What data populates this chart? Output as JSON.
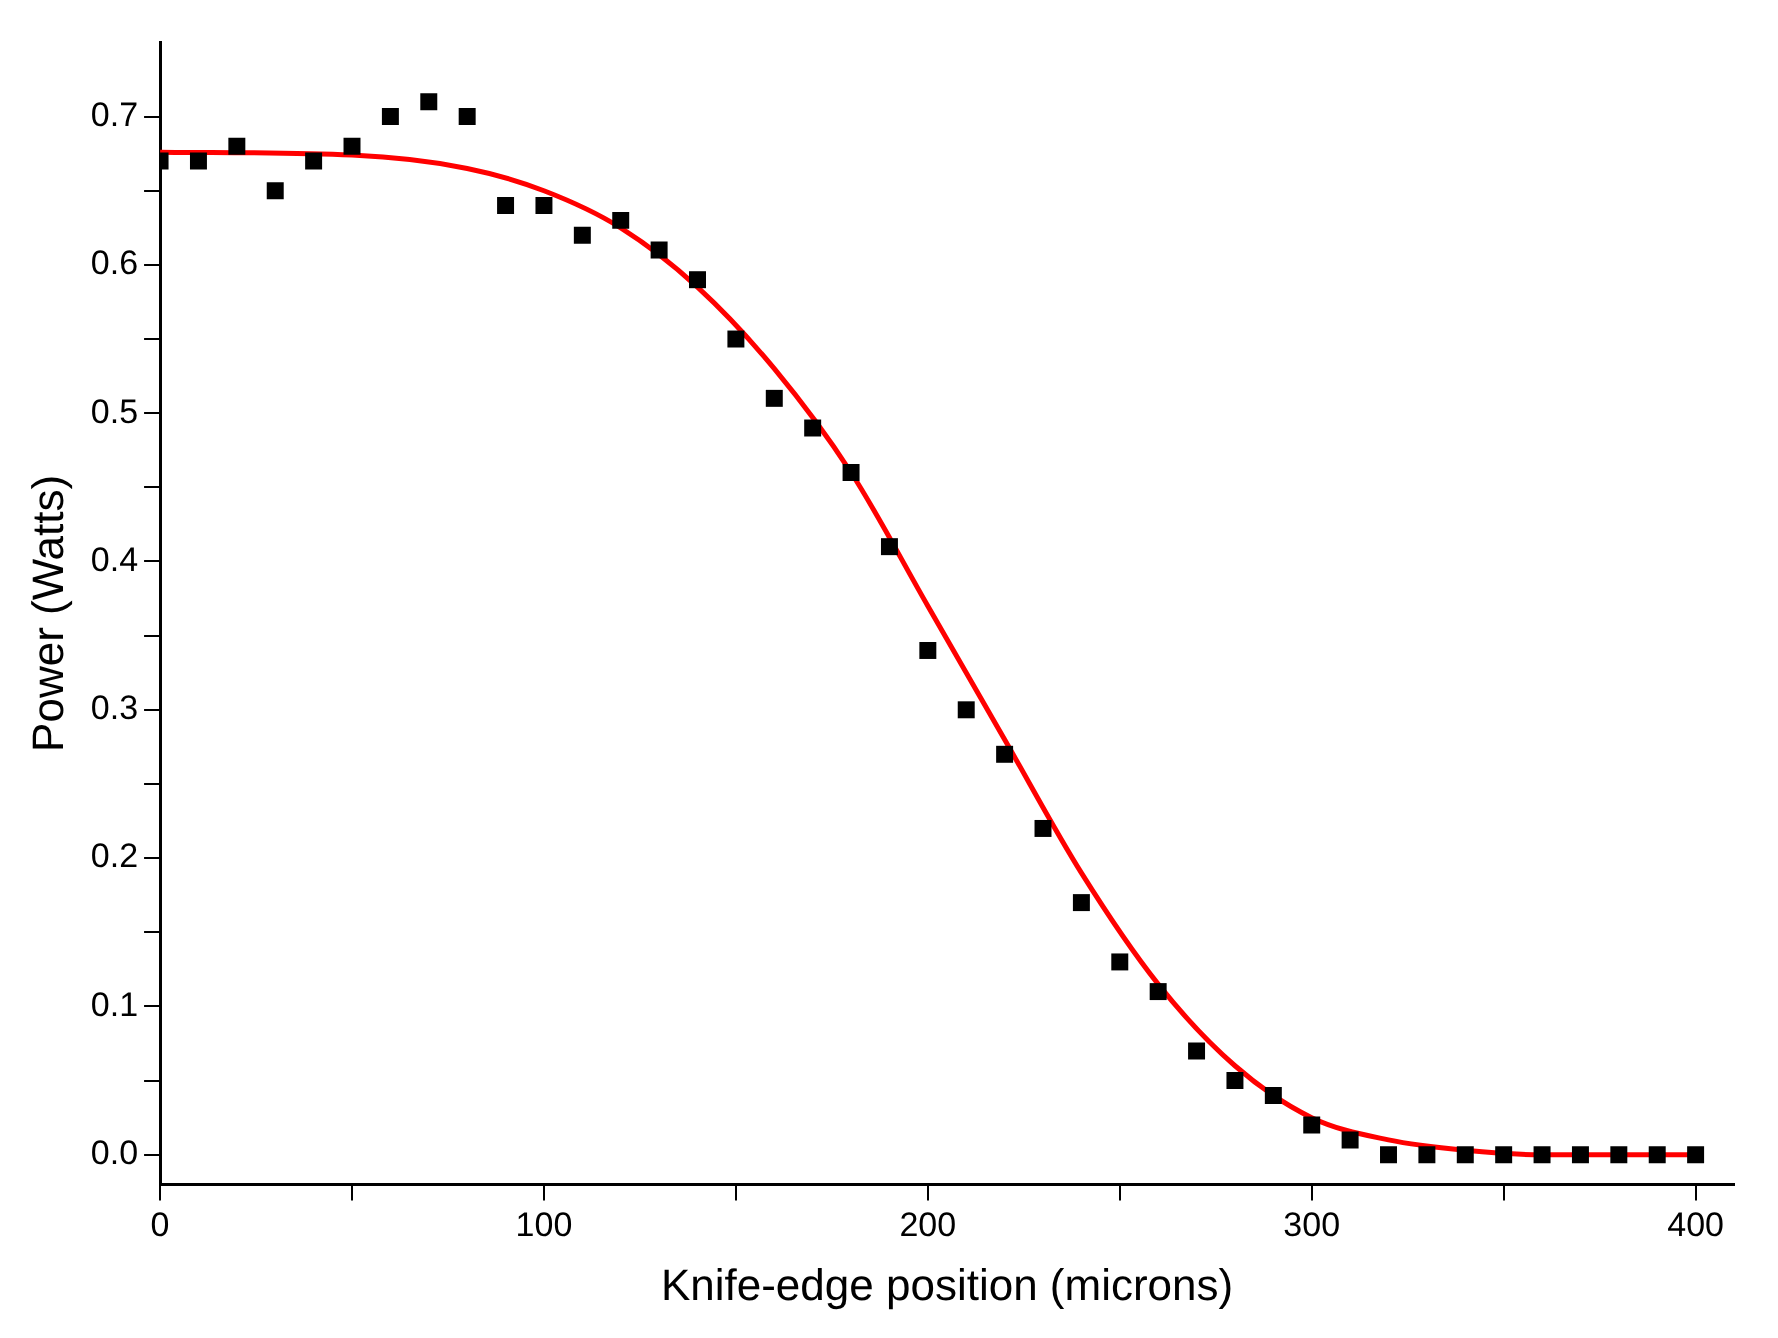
{
  "chart_data": {
    "type": "scatter",
    "xlabel": "Knife-edge position (microns)",
    "ylabel": "Power (Watts)",
    "series": [
      {
        "type": "scatter",
        "color": "#000000",
        "marker": "square",
        "x": [
          0,
          10,
          20,
          30,
          40,
          50,
          60,
          70,
          80,
          90,
          100,
          110,
          120,
          130,
          140,
          150,
          160,
          170,
          180,
          190,
          200,
          210,
          220,
          230,
          240,
          250,
          260,
          270,
          280,
          290,
          300,
          310,
          320,
          330,
          340,
          350,
          360,
          370,
          380,
          390,
          400
        ],
        "values": [
          0.67,
          0.67,
          0.68,
          0.65,
          0.67,
          0.68,
          0.7,
          0.71,
          0.7,
          0.64,
          0.64,
          0.62,
          0.63,
          0.61,
          0.59,
          0.55,
          0.51,
          0.49,
          0.46,
          0.41,
          0.34,
          0.3,
          0.27,
          0.22,
          0.17,
          0.13,
          0.11,
          0.07,
          0.05,
          0.04,
          0.02,
          0.01,
          0.0,
          0.0,
          0.0,
          0.0,
          0.0,
          0.0,
          0.0,
          0.0,
          0.0
        ]
      },
      {
        "type": "line",
        "color": "#ff0000",
        "marker": "none",
        "line_style": "solid",
        "x": [
          0,
          50,
          80,
          100,
          120,
          140,
          160,
          180,
          200,
          210,
          220,
          240,
          260,
          280,
          300,
          320,
          340,
          360,
          400
        ],
        "values": [
          0.676,
          0.674,
          0.665,
          0.65,
          0.625,
          0.585,
          0.53,
          0.46,
          0.37,
          0.325,
          0.28,
          0.19,
          0.115,
          0.06,
          0.025,
          0.01,
          0.003,
          0.0,
          0.0
        ]
      }
    ],
    "xlim": [
      0,
      410
    ],
    "ylim": [
      -0.02,
      0.75
    ],
    "xticks": [
      0,
      {
        "value": 50,
        "label": null
      },
      100,
      {
        "value": 150,
        "label": null
      },
      200,
      {
        "value": 250,
        "label": null
      },
      300,
      {
        "value": 350,
        "label": null
      },
      400
    ],
    "yticks": [
      {
        "value": 0,
        "label": "0.0"
      },
      {
        "value": 0.05,
        "label": null
      },
      {
        "value": 0.1,
        "label": "0.1"
      },
      {
        "value": 0.15,
        "label": null
      },
      {
        "value": 0.2,
        "label": "0.2"
      },
      {
        "value": 0.25,
        "label": null
      },
      {
        "value": 0.3,
        "label": "0.3"
      },
      {
        "value": 0.35,
        "label": null
      },
      {
        "value": 0.4,
        "label": "0.4"
      },
      {
        "value": 0.45,
        "label": null
      },
      {
        "value": 0.5,
        "label": "0.5"
      },
      {
        "value": 0.55,
        "label": null
      },
      {
        "value": 0.6,
        "label": "0.6"
      },
      {
        "value": 0.65,
        "label": null
      },
      {
        "value": 0.7,
        "label": "0.7"
      }
    ],
    "grid": false,
    "legend": false
  }
}
